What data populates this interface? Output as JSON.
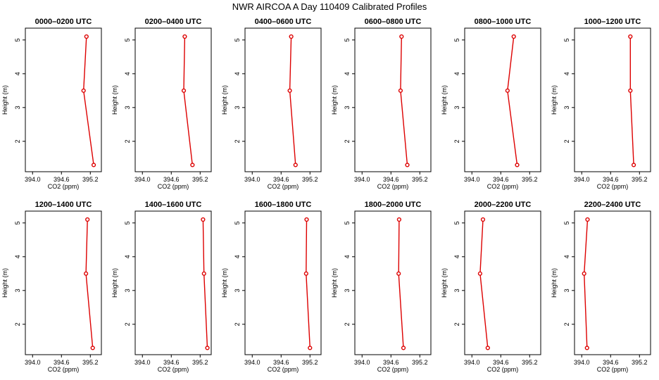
{
  "figure_title": "NWR AIRCOA A  Day 110409  Calibrated Profiles",
  "style": {
    "line_color": "#dd0000",
    "marker_color": "#dd0000"
  },
  "chart_data": [
    {
      "type": "line",
      "title": "0000–0200 UTC",
      "xlabel": "CO2 (ppm)",
      "ylabel": "Height (m)",
      "xlim": [
        393.85,
        395.43
      ],
      "ylim": [
        1.1,
        5.35
      ],
      "x_ticks": [
        "394.0",
        "394.6",
        "395.2"
      ],
      "y_ticks": [
        "2",
        "3",
        "4",
        "5"
      ],
      "points": [
        {
          "x": 395.12,
          "y": 5.1
        },
        {
          "x": 395.06,
          "y": 3.5
        },
        {
          "x": 395.27,
          "y": 1.3
        }
      ]
    },
    {
      "type": "line",
      "title": "0200–0400 UTC",
      "xlabel": "CO2 (ppm)",
      "ylabel": "Height (m)",
      "xlim": [
        393.85,
        395.43
      ],
      "ylim": [
        1.1,
        5.35
      ],
      "x_ticks": [
        "394.0",
        "394.6",
        "395.2"
      ],
      "y_ticks": [
        "2",
        "3",
        "4",
        "5"
      ],
      "points": [
        {
          "x": 394.88,
          "y": 5.1
        },
        {
          "x": 394.86,
          "y": 3.5
        },
        {
          "x": 395.04,
          "y": 1.3
        }
      ]
    },
    {
      "type": "line",
      "title": "0400–0600 UTC",
      "xlabel": "CO2 (ppm)",
      "ylabel": "Height (m)",
      "xlim": [
        393.85,
        395.43
      ],
      "ylim": [
        1.1,
        5.35
      ],
      "x_ticks": [
        "394.0",
        "394.6",
        "395.2"
      ],
      "y_ticks": [
        "2",
        "3",
        "4",
        "5"
      ],
      "points": [
        {
          "x": 394.81,
          "y": 5.1
        },
        {
          "x": 394.78,
          "y": 3.5
        },
        {
          "x": 394.9,
          "y": 1.3
        }
      ]
    },
    {
      "type": "line",
      "title": "0600–0800 UTC",
      "xlabel": "CO2 (ppm)",
      "ylabel": "Height (m)",
      "xlim": [
        393.85,
        395.43
      ],
      "ylim": [
        1.1,
        5.35
      ],
      "x_ticks": [
        "394.0",
        "394.6",
        "395.2"
      ],
      "y_ticks": [
        "2",
        "3",
        "4",
        "5"
      ],
      "points": [
        {
          "x": 394.82,
          "y": 5.1
        },
        {
          "x": 394.8,
          "y": 3.5
        },
        {
          "x": 394.94,
          "y": 1.3
        }
      ]
    },
    {
      "type": "line",
      "title": "0800–1000 UTC",
      "xlabel": "CO2 (ppm)",
      "ylabel": "Height (m)",
      "xlim": [
        393.85,
        395.43
      ],
      "ylim": [
        1.1,
        5.35
      ],
      "x_ticks": [
        "394.0",
        "394.6",
        "395.2"
      ],
      "y_ticks": [
        "2",
        "3",
        "4",
        "5"
      ],
      "points": [
        {
          "x": 394.87,
          "y": 5.1
        },
        {
          "x": 394.74,
          "y": 3.5
        },
        {
          "x": 394.94,
          "y": 1.3
        }
      ]
    },
    {
      "type": "line",
      "title": "1000–1200 UTC",
      "xlabel": "CO2 (ppm)",
      "ylabel": "Height (m)",
      "xlim": [
        393.85,
        395.43
      ],
      "ylim": [
        1.1,
        5.35
      ],
      "x_ticks": [
        "394.0",
        "394.6",
        "395.2"
      ],
      "y_ticks": [
        "2",
        "3",
        "4",
        "5"
      ],
      "points": [
        {
          "x": 395.01,
          "y": 5.1
        },
        {
          "x": 395.01,
          "y": 3.5
        },
        {
          "x": 395.08,
          "y": 1.3
        }
      ]
    },
    {
      "type": "line",
      "title": "1200–1400 UTC",
      "xlabel": "CO2 (ppm)",
      "ylabel": "Height (m)",
      "xlim": [
        393.85,
        395.43
      ],
      "ylim": [
        1.1,
        5.35
      ],
      "x_ticks": [
        "394.0",
        "394.6",
        "395.2"
      ],
      "y_ticks": [
        "2",
        "3",
        "4",
        "5"
      ],
      "points": [
        {
          "x": 395.14,
          "y": 5.1
        },
        {
          "x": 395.11,
          "y": 3.5
        },
        {
          "x": 395.25,
          "y": 1.3
        }
      ]
    },
    {
      "type": "line",
      "title": "1400–1600 UTC",
      "xlabel": "CO2 (ppm)",
      "ylabel": "Height (m)",
      "xlim": [
        393.85,
        395.43
      ],
      "ylim": [
        1.1,
        5.35
      ],
      "x_ticks": [
        "394.0",
        "394.6",
        "395.2"
      ],
      "y_ticks": [
        "2",
        "3",
        "4",
        "5"
      ],
      "points": [
        {
          "x": 395.26,
          "y": 5.1
        },
        {
          "x": 395.28,
          "y": 3.5
        },
        {
          "x": 395.35,
          "y": 1.3
        }
      ]
    },
    {
      "type": "line",
      "title": "1600–1800 UTC",
      "xlabel": "CO2 (ppm)",
      "ylabel": "Height (m)",
      "xlim": [
        393.85,
        395.43
      ],
      "ylim": [
        1.1,
        5.35
      ],
      "x_ticks": [
        "394.0",
        "394.6",
        "395.2"
      ],
      "y_ticks": [
        "2",
        "3",
        "4",
        "5"
      ],
      "points": [
        {
          "x": 395.13,
          "y": 5.1
        },
        {
          "x": 395.12,
          "y": 3.5
        },
        {
          "x": 395.2,
          "y": 1.3
        }
      ]
    },
    {
      "type": "line",
      "title": "1800–2000 UTC",
      "xlabel": "CO2 (ppm)",
      "ylabel": "Height (m)",
      "xlim": [
        393.85,
        395.43
      ],
      "ylim": [
        1.1,
        5.35
      ],
      "x_ticks": [
        "394.0",
        "394.6",
        "395.2"
      ],
      "y_ticks": [
        "2",
        "3",
        "4",
        "5"
      ],
      "points": [
        {
          "x": 394.77,
          "y": 5.1
        },
        {
          "x": 394.76,
          "y": 3.5
        },
        {
          "x": 394.86,
          "y": 1.3
        }
      ]
    },
    {
      "type": "line",
      "title": "2000–2200 UTC",
      "xlabel": "CO2 (ppm)",
      "ylabel": "Height (m)",
      "xlim": [
        393.85,
        395.43
      ],
      "ylim": [
        1.1,
        5.35
      ],
      "x_ticks": [
        "394.0",
        "394.6",
        "395.2"
      ],
      "y_ticks": [
        "2",
        "3",
        "4",
        "5"
      ],
      "points": [
        {
          "x": 394.23,
          "y": 5.1
        },
        {
          "x": 394.17,
          "y": 3.5
        },
        {
          "x": 394.33,
          "y": 1.3
        }
      ]
    },
    {
      "type": "line",
      "title": "2200–2400 UTC",
      "xlabel": "CO2 (ppm)",
      "ylabel": "Height (m)",
      "xlim": [
        393.85,
        395.43
      ],
      "ylim": [
        1.1,
        5.35
      ],
      "x_ticks": [
        "394.0",
        "394.6",
        "395.2"
      ],
      "y_ticks": [
        "2",
        "3",
        "4",
        "5"
      ],
      "points": [
        {
          "x": 394.12,
          "y": 5.1
        },
        {
          "x": 394.05,
          "y": 3.5
        },
        {
          "x": 394.11,
          "y": 1.3
        }
      ]
    }
  ]
}
